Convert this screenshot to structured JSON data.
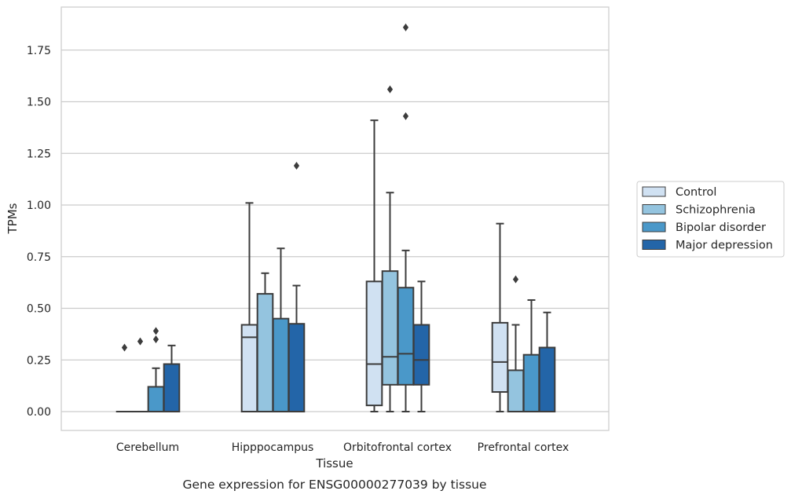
{
  "chart_data": {
    "type": "box",
    "title": "",
    "caption": "Gene expression for ENSG00000277039 by tissue",
    "xlabel": "Tissue",
    "ylabel": "TPMs",
    "ylim": [
      -0.09,
      1.96
    ],
    "yticks": [
      "0.00",
      "0.25",
      "0.50",
      "0.75",
      "1.00",
      "1.25",
      "1.50",
      "1.75"
    ],
    "categories": [
      "Cerebellum",
      "Hipppocampus",
      "Orbitofrontal cortex",
      "Prefrontal cortex"
    ],
    "grid": true,
    "legend_position": "right",
    "series": [
      {
        "name": "Control",
        "color": "#d0e1f2",
        "boxes": [
          {
            "whislo": 0,
            "q1": 0,
            "med": 0,
            "q3": 0,
            "whishi": 0,
            "fliers": [
              0.31
            ]
          },
          {
            "whislo": 0,
            "q1": 0,
            "med": 0.36,
            "q3": 0.42,
            "whishi": 1.01,
            "fliers": []
          },
          {
            "whislo": 0,
            "q1": 0.03,
            "med": 0.23,
            "q3": 0.63,
            "whishi": 1.41,
            "fliers": []
          },
          {
            "whislo": 0,
            "q1": 0.095,
            "med": 0.24,
            "q3": 0.43,
            "whishi": 0.91,
            "fliers": []
          }
        ]
      },
      {
        "name": "Schizophrenia",
        "color": "#94c4df",
        "boxes": [
          {
            "whislo": 0,
            "q1": 0,
            "med": 0,
            "q3": 0,
            "whishi": 0,
            "fliers": [
              0.34
            ]
          },
          {
            "whislo": 0,
            "q1": 0,
            "med": 0,
            "q3": 0.57,
            "whishi": 0.67,
            "fliers": []
          },
          {
            "whislo": 0,
            "q1": 0.13,
            "med": 0.265,
            "q3": 0.68,
            "whishi": 1.06,
            "fliers": [
              1.56
            ]
          },
          {
            "whislo": 0,
            "q1": 0,
            "med": 0,
            "q3": 0.2,
            "whishi": 0.42,
            "fliers": [
              0.64
            ]
          }
        ]
      },
      {
        "name": "Bipolar disorder",
        "color": "#4a98c9",
        "boxes": [
          {
            "whislo": 0,
            "q1": 0,
            "med": 0,
            "q3": 0.12,
            "whishi": 0.21,
            "fliers": [
              0.35,
              0.39
            ]
          },
          {
            "whislo": 0,
            "q1": 0,
            "med": 0,
            "q3": 0.45,
            "whishi": 0.79,
            "fliers": []
          },
          {
            "whislo": 0,
            "q1": 0.13,
            "med": 0.28,
            "q3": 0.6,
            "whishi": 0.78,
            "fliers": [
              1.43,
              1.86
            ]
          },
          {
            "whislo": 0,
            "q1": 0,
            "med": 0,
            "q3": 0.275,
            "whishi": 0.54,
            "fliers": []
          }
        ]
      },
      {
        "name": "Major depression",
        "color": "#2365a8",
        "boxes": [
          {
            "whislo": 0,
            "q1": 0,
            "med": 0,
            "q3": 0.23,
            "whishi": 0.32,
            "fliers": []
          },
          {
            "whislo": 0,
            "q1": 0,
            "med": 0,
            "q3": 0.425,
            "whishi": 0.61,
            "fliers": [
              1.19
            ]
          },
          {
            "whislo": 0,
            "q1": 0.13,
            "med": 0.25,
            "q3": 0.42,
            "whishi": 0.63,
            "fliers": []
          },
          {
            "whislo": 0,
            "q1": 0,
            "med": 0,
            "q3": 0.31,
            "whishi": 0.48,
            "fliers": []
          }
        ]
      }
    ]
  }
}
